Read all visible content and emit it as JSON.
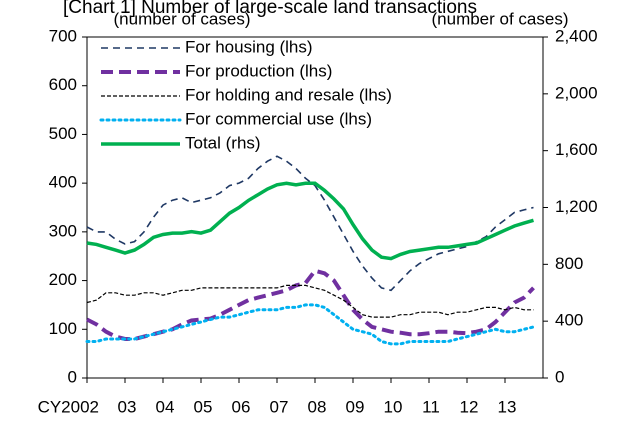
{
  "chart_data": {
    "type": "line",
    "title": "[Chart 1] Number of large-scale land transactions",
    "ylabel": "(number of cases)",
    "y2label": "(number of cases)",
    "categories": [
      "CY2002",
      null,
      null,
      null,
      "03",
      null,
      null,
      null,
      "04",
      null,
      null,
      null,
      "05",
      null,
      null,
      null,
      "06",
      null,
      null,
      null,
      "07",
      null,
      null,
      null,
      "08",
      null,
      null,
      null,
      "09",
      null,
      null,
      null,
      "10",
      null,
      null,
      null,
      "11",
      null,
      null,
      null,
      "12",
      null,
      null,
      null,
      "13",
      null,
      null,
      null
    ],
    "ylim": [
      0,
      700
    ],
    "yticks": [
      0,
      100,
      200,
      300,
      400,
      500,
      600,
      700
    ],
    "y2lim": [
      0,
      2400
    ],
    "y2ticks": [
      0,
      400,
      800,
      {
        "value": 1200,
        "label": "1,200"
      },
      {
        "value": 1600,
        "label": "1,600"
      },
      {
        "value": 2000,
        "label": "2,000"
      },
      {
        "value": 2400,
        "label": "2,400"
      }
    ],
    "legend": "upper left",
    "series": [
      {
        "name": "For housing (lhs)",
        "color": "#1f3864",
        "values": [
          310,
          300,
          300,
          285,
          275,
          280,
          300,
          330,
          355,
          365,
          370,
          360,
          365,
          370,
          380,
          395,
          400,
          410,
          430,
          445,
          455,
          445,
          430,
          410,
          395,
          365,
          330,
          295,
          260,
          230,
          205,
          185,
          180,
          200,
          220,
          235,
          245,
          255,
          260,
          265,
          270,
          280,
          290,
          310,
          325,
          340,
          345,
          350
        ]
      },
      {
        "name": "For production (lhs)",
        "color": "#7030a0",
        "values": [
          120,
          110,
          95,
          85,
          80,
          80,
          85,
          90,
          95,
          100,
          110,
          118,
          120,
          122,
          130,
          140,
          150,
          160,
          165,
          170,
          175,
          180,
          190,
          195,
          220,
          215,
          200,
          170,
          140,
          120,
          105,
          100,
          95,
          93,
          90,
          90,
          92,
          95,
          95,
          93,
          92,
          95,
          100,
          115,
          135,
          155,
          165,
          185
        ]
      },
      {
        "name": "For holding and resale (lhs)",
        "color": "#000000",
        "values": [
          155,
          160,
          175,
          175,
          170,
          170,
          175,
          175,
          170,
          175,
          180,
          180,
          185,
          185,
          185,
          185,
          185,
          185,
          185,
          185,
          185,
          190,
          190,
          190,
          185,
          180,
          170,
          160,
          145,
          130,
          125,
          125,
          125,
          130,
          130,
          135,
          135,
          135,
          130,
          135,
          135,
          140,
          145,
          145,
          140,
          145,
          140,
          140
        ]
      },
      {
        "name": "For commercial use (lhs)",
        "color": "#00b0f0",
        "values": [
          75,
          75,
          80,
          80,
          80,
          80,
          85,
          90,
          95,
          100,
          105,
          110,
          115,
          120,
          125,
          125,
          130,
          135,
          140,
          140,
          140,
          145,
          145,
          150,
          150,
          145,
          130,
          115,
          100,
          95,
          90,
          75,
          70,
          70,
          75,
          75,
          75,
          75,
          75,
          80,
          85,
          90,
          95,
          100,
          95,
          95,
          100,
          105
        ]
      },
      {
        "name": "Total (rhs)",
        "color": "#00b050",
        "axis": "y2",
        "values": [
          950,
          940,
          920,
          900,
          880,
          900,
          940,
          990,
          1010,
          1020,
          1020,
          1030,
          1020,
          1040,
          1100,
          1160,
          1200,
          1250,
          1290,
          1330,
          1360,
          1370,
          1360,
          1370,
          1370,
          1320,
          1260,
          1190,
          1080,
          980,
          900,
          850,
          840,
          870,
          890,
          900,
          910,
          920,
          920,
          930,
          940,
          950,
          980,
          1010,
          1040,
          1070,
          1090,
          1110
        ]
      }
    ]
  }
}
